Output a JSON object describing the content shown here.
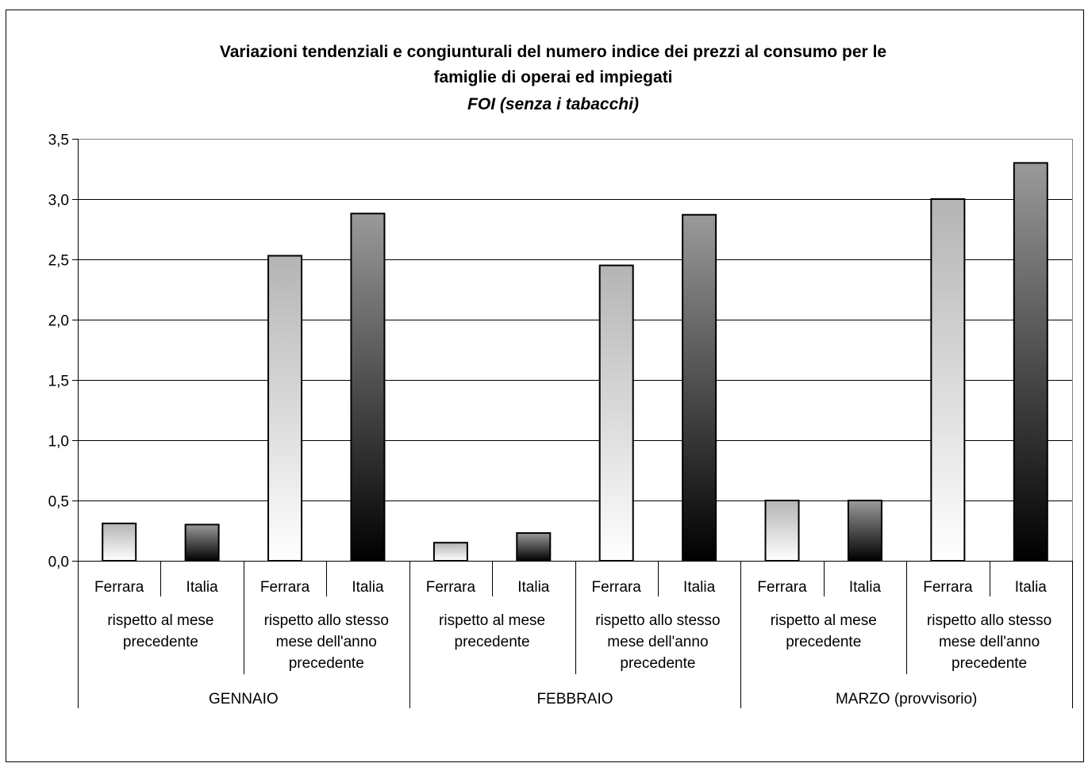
{
  "chart_data": {
    "type": "bar",
    "title": "Variazioni tendenziali e congiunturali del numero indice dei prezzi al consumo per le famiglie di operai ed impiegati",
    "title_lines": [
      "Variazioni tendenziali e congiunturali del numero indice dei prezzi al consumo per le",
      "famiglie di operai ed impiegati"
    ],
    "subtitle": "FOI (senza i tabacchi)",
    "xlabel": "",
    "ylabel": "",
    "ylim": [
      0,
      3.5
    ],
    "yticks": [
      "0,0",
      "0,5",
      "1,0",
      "1,5",
      "2,0",
      "2,5",
      "3,0",
      "3,5"
    ],
    "grid": true,
    "legend": "none",
    "categories": [
      {
        "month": "GENNAIO",
        "groups": [
          {
            "label_lines": [
              "rispetto al mese",
              "precedente"
            ],
            "bars": [
              {
                "label": "Ferrara",
                "value": 0.31
              },
              {
                "label": "Italia",
                "value": 0.3
              }
            ]
          },
          {
            "label_lines": [
              "rispetto allo stesso",
              "mese dell'anno",
              "precedente"
            ],
            "bars": [
              {
                "label": "Ferrara",
                "value": 2.53
              },
              {
                "label": "Italia",
                "value": 2.88
              }
            ]
          }
        ]
      },
      {
        "month": "FEBBRAIO",
        "groups": [
          {
            "label_lines": [
              "rispetto al mese",
              "precedente"
            ],
            "bars": [
              {
                "label": "Ferrara",
                "value": 0.15
              },
              {
                "label": "Italia",
                "value": 0.23
              }
            ]
          },
          {
            "label_lines": [
              "rispetto allo stesso",
              "mese dell'anno",
              "precedente"
            ],
            "bars": [
              {
                "label": "Ferrara",
                "value": 2.45
              },
              {
                "label": "Italia",
                "value": 2.87
              }
            ]
          }
        ]
      },
      {
        "month": "MARZO (provvisorio)",
        "groups": [
          {
            "label_lines": [
              "rispetto al mese",
              "precedente"
            ],
            "bars": [
              {
                "label": "Ferrara",
                "value": 0.5
              },
              {
                "label": "Italia",
                "value": 0.5
              }
            ]
          },
          {
            "label_lines": [
              "rispetto allo stesso",
              "mese dell'anno",
              "precedente"
            ],
            "bars": [
              {
                "label": "Ferrara",
                "value": 3.0
              },
              {
                "label": "Italia",
                "value": 3.3
              }
            ]
          }
        ]
      }
    ],
    "colors": {
      "ferrara_top": "#b4b4b4",
      "ferrara_bottom": "#ffffff",
      "italia_top": "#9a9a9a",
      "italia_bottom": "#000000",
      "grid": "#000000",
      "plot_border": "#808080",
      "frame": "#000000"
    }
  }
}
